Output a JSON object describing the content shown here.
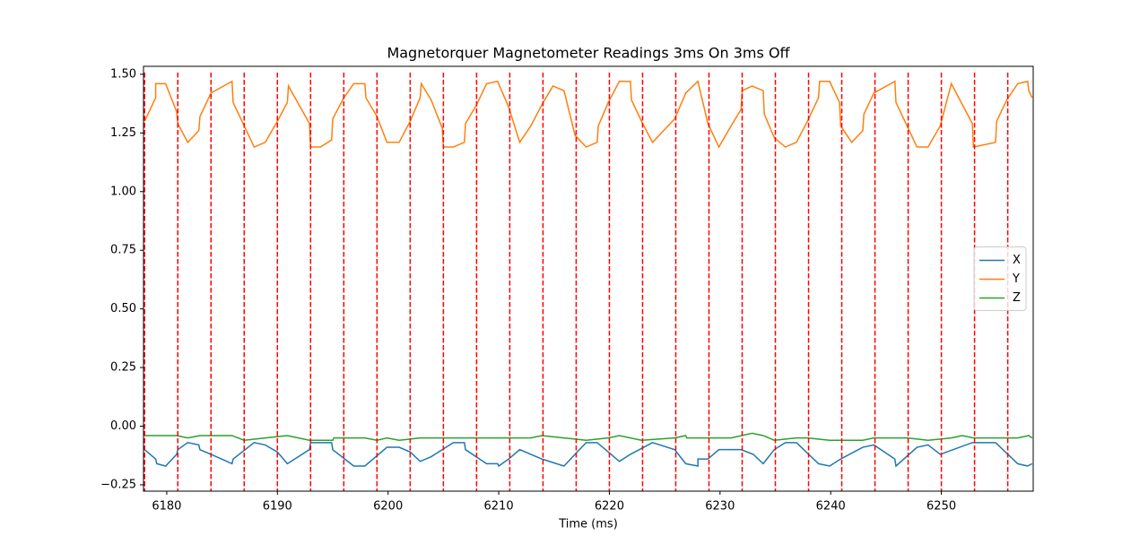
{
  "chart_data": {
    "type": "line",
    "title": "Magnetorquer Magnetometer Readings 3ms On 3ms Off",
    "xlabel": "Time (ms)",
    "xlim": [
      6177.9,
      6258.3
    ],
    "ylim": [
      -0.277,
      1.534
    ],
    "xticks": [
      6180,
      6190,
      6200,
      6210,
      6220,
      6230,
      6240,
      6250
    ],
    "yticks": [
      {
        "value": -0.25,
        "label": "−0.25"
      },
      {
        "value": 0,
        "label": "0.00"
      },
      {
        "value": 0.25,
        "label": "0.25"
      },
      {
        "value": 0.5,
        "label": "0.50"
      },
      {
        "value": 0.75,
        "label": "0.75"
      },
      {
        "value": 1,
        "label": "1.00"
      },
      {
        "value": 1.25,
        "label": "1.25"
      },
      {
        "value": 1.5,
        "label": "1.50"
      }
    ],
    "grid": false,
    "legend": "center right",
    "vlines": {
      "color": "#ff0000",
      "style": "dashed",
      "x": [
        6178,
        6181,
        6184,
        6187,
        6190,
        6193,
        6196,
        6199,
        6202,
        6205,
        6208,
        6211,
        6214,
        6217,
        6220,
        6223,
        6226,
        6229,
        6232,
        6235,
        6238,
        6241,
        6244,
        6247,
        6250,
        6253,
        6256
      ]
    },
    "series": [
      {
        "name": "X",
        "color": "#1f77b4",
        "x": [
          6178.0,
          6179.0,
          6179.1,
          6179.9,
          6180.9,
          6181.0,
          6181.9,
          6182.9,
          6183.0,
          6184.0,
          6185.9,
          6186.0,
          6187.9,
          6188.9,
          6190.0,
          6190.9,
          6192.9,
          6193.0,
          6194.9,
          6195.0,
          6196.9,
          6197.9,
          6199.9,
          6201.0,
          6202.0,
          6202.9,
          6203.9,
          6205.9,
          6206.9,
          6207.0,
          6208.9,
          6209.9,
          6210.0,
          6210.9,
          6211.9,
          6213.9,
          6215.9,
          6216.9,
          6217.9,
          6218.9,
          6219.9,
          6220.9,
          6221.9,
          6223.9,
          6225.9,
          6226.9,
          6228.0,
          6228.0,
          6228.9,
          6229.9,
          6231.9,
          6233.0,
          6233.9,
          6234.9,
          6235.9,
          6236.9,
          6238.9,
          6239.9,
          6240.9,
          6242.9,
          6243.9,
          6245.8,
          6245.9,
          6247.8,
          6248.8,
          6249.9,
          6252.8,
          6254.9,
          6256.9,
          6257.8,
          6258.2
        ],
        "values": [
          -0.1,
          -0.14,
          -0.16,
          -0.17,
          -0.12,
          -0.1,
          -0.07,
          -0.08,
          -0.1,
          -0.12,
          -0.16,
          -0.14,
          -0.07,
          -0.08,
          -0.11,
          -0.16,
          -0.1,
          -0.07,
          -0.07,
          -0.1,
          -0.17,
          -0.17,
          -0.09,
          -0.09,
          -0.11,
          -0.15,
          -0.13,
          -0.07,
          -0.07,
          -0.1,
          -0.16,
          -0.16,
          -0.17,
          -0.14,
          -0.1,
          -0.14,
          -0.17,
          -0.12,
          -0.07,
          -0.07,
          -0.11,
          -0.15,
          -0.12,
          -0.07,
          -0.1,
          -0.16,
          -0.17,
          -0.14,
          -0.14,
          -0.1,
          -0.1,
          -0.12,
          -0.16,
          -0.1,
          -0.07,
          -0.07,
          -0.16,
          -0.17,
          -0.14,
          -0.09,
          -0.08,
          -0.14,
          -0.17,
          -0.09,
          -0.08,
          -0.12,
          -0.07,
          -0.07,
          -0.16,
          -0.17,
          -0.16
        ]
      },
      {
        "name": "Y",
        "color": "#ff7f0e",
        "x": [
          6178.0,
          6179.0,
          6179.0,
          6179.9,
          6180.9,
          6181.0,
          6181.9,
          6182.9,
          6183.0,
          6184.0,
          6185.9,
          6186.0,
          6187.9,
          6188.9,
          6190.0,
          6190.9,
          6191.0,
          6192.9,
          6193.0,
          6193.9,
          6194.9,
          6195.0,
          6196.0,
          6196.9,
          6197.9,
          6198.0,
          6199.0,
          6199.9,
          6201.0,
          6202.0,
          6202.9,
          6203.0,
          6203.9,
          6204.9,
          6205.0,
          6205.9,
          6206.9,
          6207.0,
          6208.0,
          6208.9,
          6209.9,
          6210.9,
          6211.9,
          6212.9,
          6213.9,
          6214.9,
          6215.9,
          6216.9,
          6217.9,
          6218.9,
          6219.0,
          6219.9,
          6220.9,
          6221.9,
          6222.0,
          6222.9,
          6223.9,
          6224.9,
          6225.9,
          6226.9,
          6228.0,
          6228.9,
          6229.9,
          6231.0,
          6231.9,
          6232.0,
          6232.9,
          6233.9,
          6234.0,
          6234.9,
          6235.9,
          6236.9,
          6237.9,
          6238.9,
          6239.0,
          6239.9,
          6240.8,
          6240.9,
          6241.9,
          6242.9,
          6243.0,
          6243.9,
          6245.8,
          6245.9,
          6247.8,
          6248.8,
          6249.9,
          6250.9,
          6252.8,
          6252.9,
          6254.9,
          6255.0,
          6255.9,
          6256.9,
          6257.8,
          6257.9,
          6258.2
        ],
        "values": [
          1.3,
          1.4,
          1.46,
          1.46,
          1.34,
          1.29,
          1.21,
          1.26,
          1.32,
          1.42,
          1.47,
          1.38,
          1.19,
          1.21,
          1.3,
          1.38,
          1.45,
          1.29,
          1.19,
          1.19,
          1.22,
          1.31,
          1.4,
          1.46,
          1.46,
          1.4,
          1.32,
          1.21,
          1.21,
          1.3,
          1.4,
          1.46,
          1.39,
          1.27,
          1.19,
          1.19,
          1.21,
          1.29,
          1.37,
          1.46,
          1.47,
          1.36,
          1.21,
          1.28,
          1.37,
          1.45,
          1.43,
          1.24,
          1.19,
          1.21,
          1.28,
          1.38,
          1.47,
          1.47,
          1.39,
          1.3,
          1.21,
          1.26,
          1.31,
          1.42,
          1.47,
          1.29,
          1.19,
          1.28,
          1.35,
          1.43,
          1.45,
          1.43,
          1.33,
          1.23,
          1.19,
          1.21,
          1.3,
          1.4,
          1.47,
          1.47,
          1.38,
          1.28,
          1.21,
          1.26,
          1.33,
          1.42,
          1.47,
          1.38,
          1.19,
          1.19,
          1.28,
          1.46,
          1.29,
          1.19,
          1.21,
          1.3,
          1.39,
          1.46,
          1.47,
          1.43,
          1.4
        ]
      },
      {
        "name": "Z",
        "color": "#2ca02c",
        "x": [
          6178.0,
          6180.9,
          6181.9,
          6183.0,
          6185.9,
          6187.0,
          6188.9,
          6190.9,
          6192.9,
          6195.0,
          6195.1,
          6197.9,
          6199.0,
          6199.9,
          6201.0,
          6202.9,
          6212.9,
          6213.9,
          6215.9,
          6217.9,
          6219.9,
          6220.9,
          6222.9,
          6225.9,
          6226.9,
          6227.0,
          6231.0,
          6232.9,
          6233.9,
          6234.9,
          6236.9,
          6237.9,
          6239.9,
          6242.9,
          6243.9,
          6246.9,
          6248.8,
          6250.9,
          6251.9,
          6252.9,
          6256.9,
          6257.9,
          6258.2
        ],
        "values": [
          -0.04,
          -0.04,
          -0.05,
          -0.04,
          -0.04,
          -0.06,
          -0.05,
          -0.04,
          -0.06,
          -0.06,
          -0.05,
          -0.05,
          -0.06,
          -0.05,
          -0.06,
          -0.05,
          -0.05,
          -0.04,
          -0.05,
          -0.06,
          -0.05,
          -0.04,
          -0.06,
          -0.05,
          -0.04,
          -0.05,
          -0.05,
          -0.03,
          -0.04,
          -0.06,
          -0.05,
          -0.05,
          -0.06,
          -0.06,
          -0.05,
          -0.05,
          -0.06,
          -0.05,
          -0.04,
          -0.05,
          -0.05,
          -0.04,
          -0.05
        ]
      }
    ]
  }
}
